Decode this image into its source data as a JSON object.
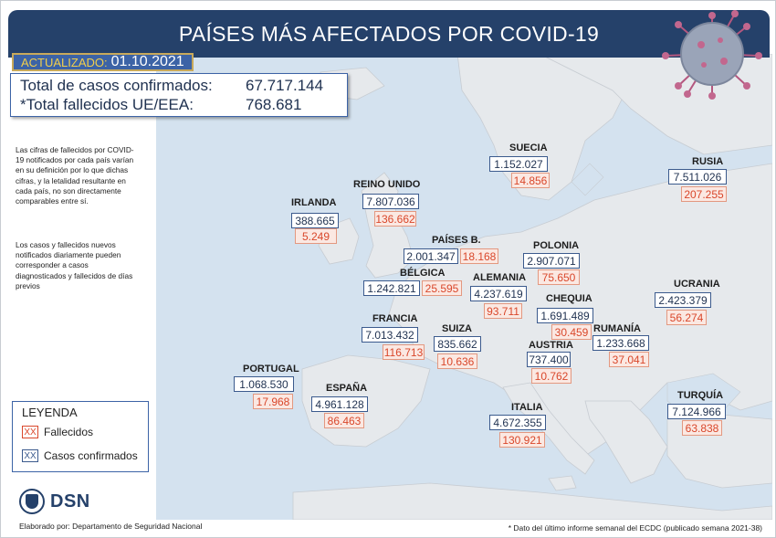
{
  "title": "PAÍSES MÁS AFECTADOS POR COVID-19",
  "updated": {
    "label": "ACTUALIZADO:",
    "date": "01.10.2021"
  },
  "totals": {
    "confirmed_label": "Total de casos confirmados:",
    "confirmed_value": "67.717.144",
    "deaths_label": "*Total fallecidos UE/EEA:",
    "deaths_value": "768.681"
  },
  "notes": [
    "Las cifras de fallecidos por COVID-19 notificados por cada país varían en su definición por lo que dichas cifras, y la letalidad resultante en cada país, no son directamente comparables entre sí.",
    "Los casos y fallecidos nuevos notificados diariamente pueden corresponder a casos diagnosticados y fallecidos de días previos"
  ],
  "legend": {
    "title": "LEYENDA",
    "swatch_text": "XX",
    "deaths_label": "Fallecidos",
    "cases_label": "Casos confirmados",
    "deaths_color": "#d9472b",
    "cases_color": "#3b5a8d"
  },
  "logo": {
    "text": "DSN"
  },
  "author": "Elaborado por: Departamento de Seguridad Nacional",
  "footnote": "* Dato del último informe semanal del ECDC (publicado semana 2021-38)",
  "countries": {
    "suecia": {
      "name": "SUECIA",
      "cases": "1.152.027",
      "deaths": "14.856"
    },
    "rusia": {
      "name": "RUSIA",
      "cases": "7.511.026",
      "deaths": "207.255"
    },
    "reino_unido": {
      "name": "REINO UNIDO",
      "cases": "7.807.036",
      "deaths": "136.662"
    },
    "irlanda": {
      "name": "IRLANDA",
      "cases": "388.665",
      "deaths": "5.249"
    },
    "paises_bajos": {
      "name": "PAÍSES B.",
      "cases": "2.001.347",
      "deaths": "18.168"
    },
    "polonia": {
      "name": "POLONIA",
      "cases": "2.907.071",
      "deaths": "75.650"
    },
    "belgica": {
      "name": "BÉLGICA",
      "cases": "1.242.821",
      "deaths": "25.595"
    },
    "alemania": {
      "name": "ALEMANIA",
      "cases": "4.237.619",
      "deaths": "93.711"
    },
    "ucrania": {
      "name": "UCRANIA",
      "cases": "2.423.379",
      "deaths": "56.274"
    },
    "chequia": {
      "name": "CHEQUIA",
      "cases": "1.691.489",
      "deaths": "30.459"
    },
    "francia": {
      "name": "FRANCIA",
      "cases": "7.013.432",
      "deaths": "116.713"
    },
    "suiza": {
      "name": "SUIZA",
      "cases": "835.662",
      "deaths": "10.636"
    },
    "rumania": {
      "name": "RUMANÍA",
      "cases": "1.233.668",
      "deaths": "37.041"
    },
    "austria": {
      "name": "AUSTRIA",
      "cases": "737.400",
      "deaths": "10.762"
    },
    "portugal": {
      "name": "PORTUGAL",
      "cases": "1.068.530",
      "deaths": "17.968"
    },
    "espana": {
      "name": "ESPAÑA",
      "cases": "4.961.128",
      "deaths": "86.463"
    },
    "italia": {
      "name": "ITALIA",
      "cases": "4.672.355",
      "deaths": "130.921"
    },
    "turquia": {
      "name": "TURQUÍA",
      "cases": "7.124.966",
      "deaths": "63.838"
    }
  }
}
